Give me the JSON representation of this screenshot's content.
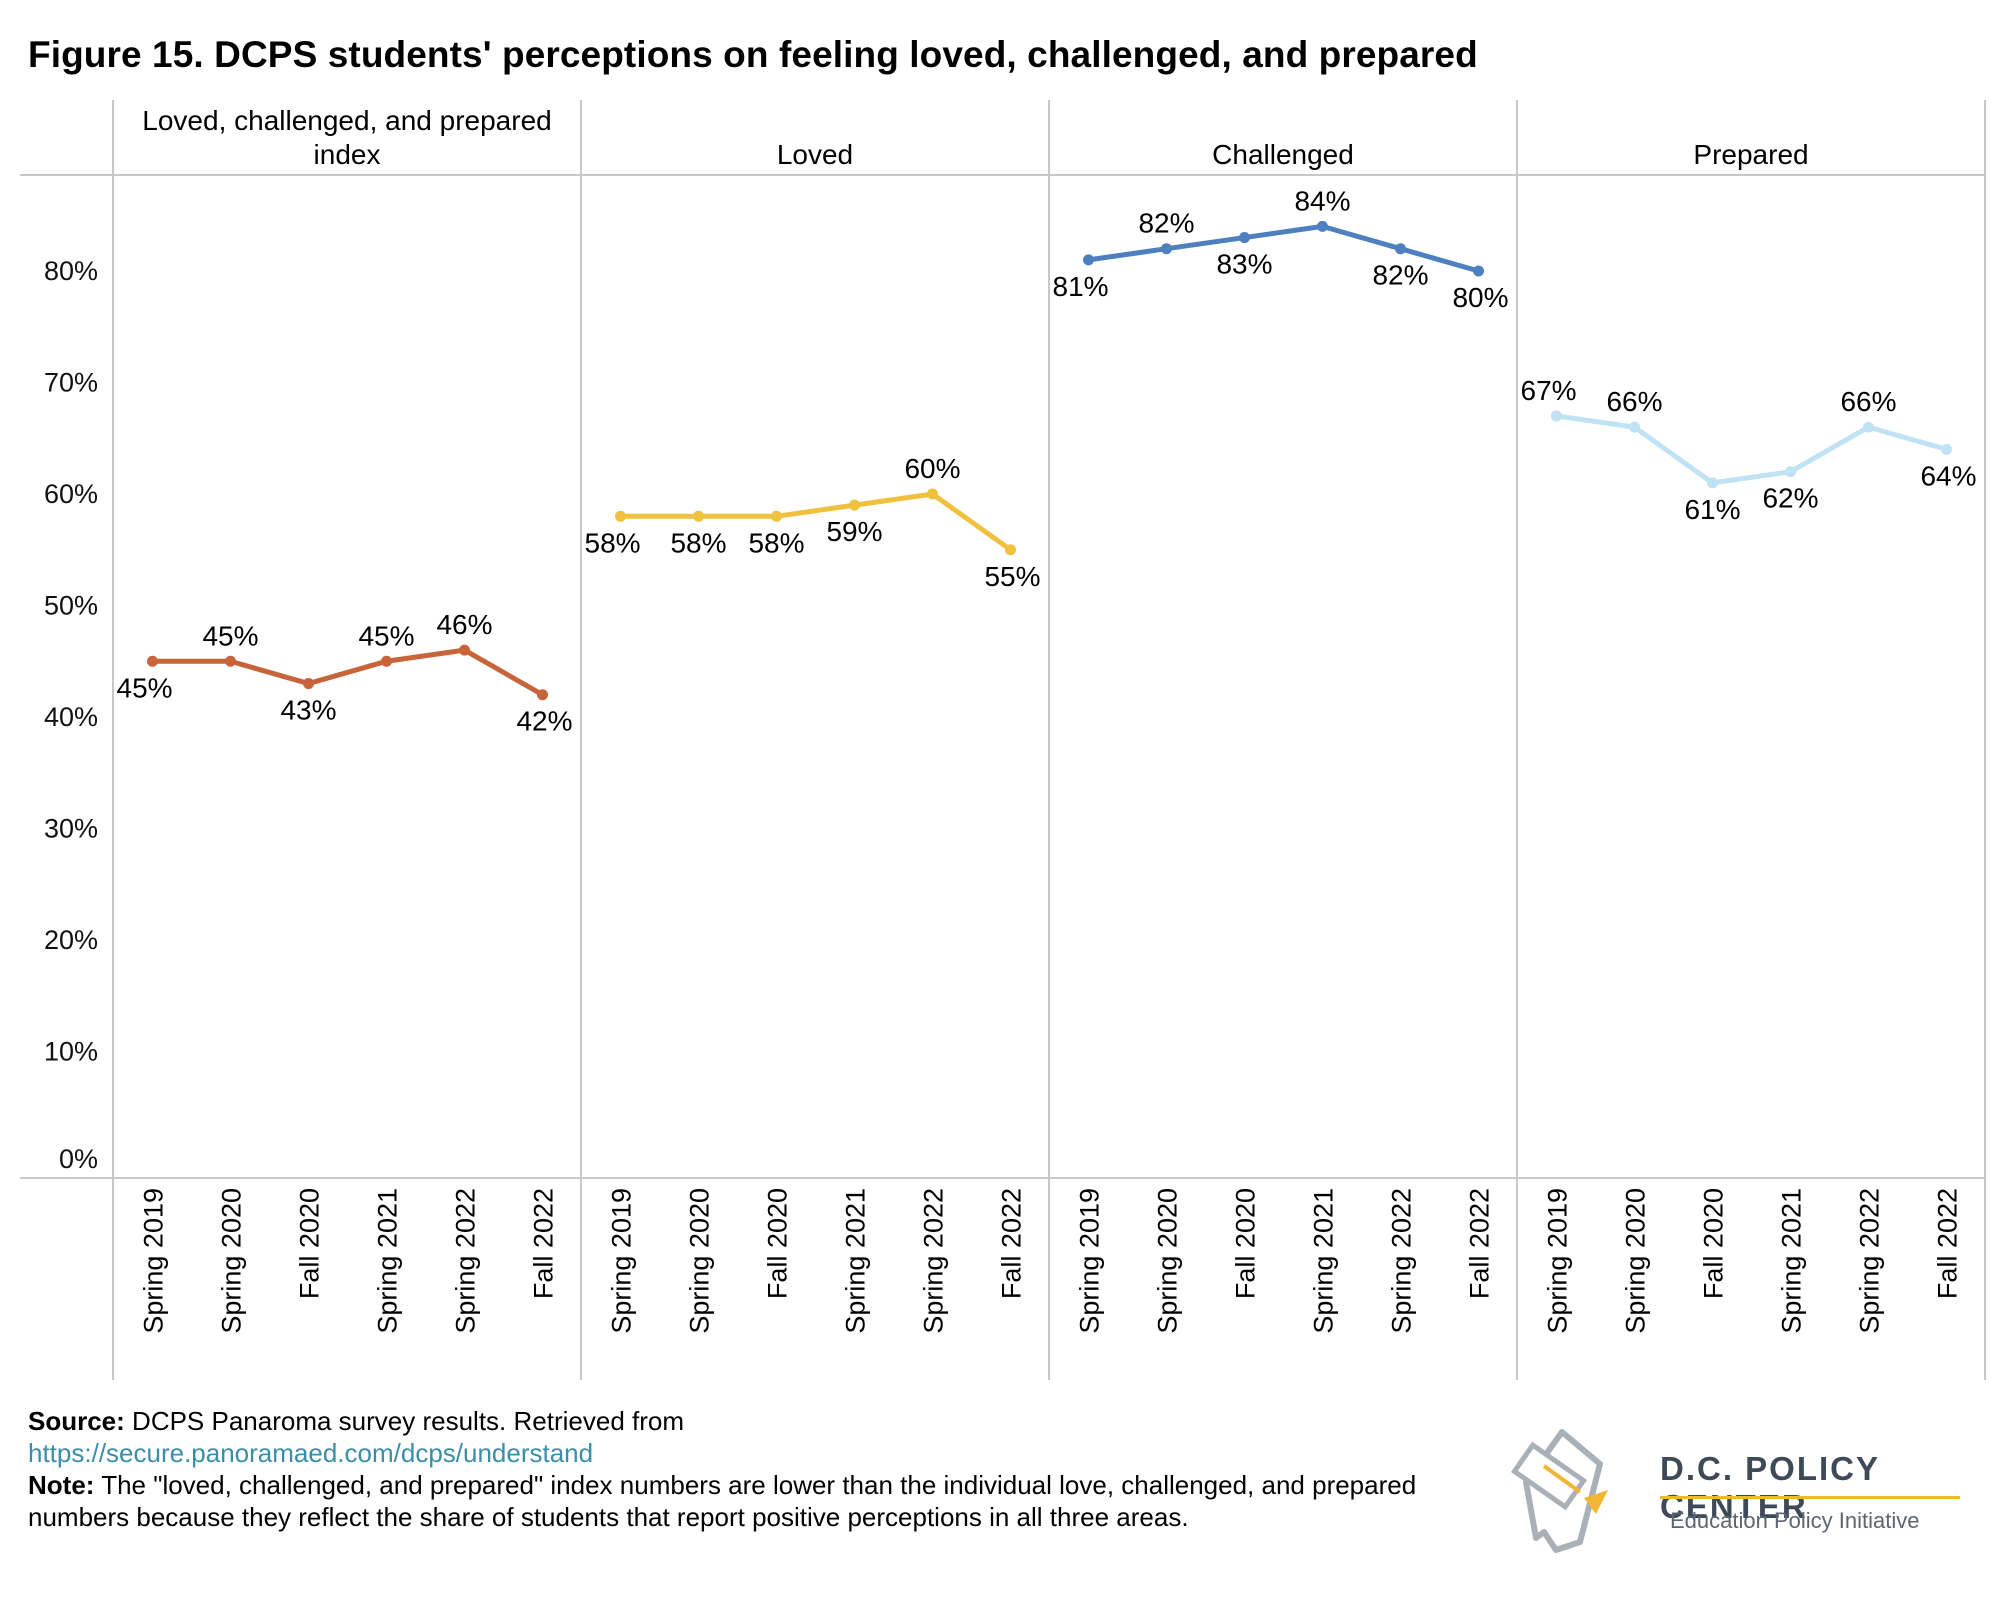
{
  "title": "Figure 15. DCPS students' perceptions on feeling loved, challenged, and prepared",
  "chart_data": {
    "type": "line",
    "categories": [
      "Spring 2019",
      "Spring 2020",
      "Fall 2020",
      "Spring 2021",
      "Spring 2022",
      "Fall 2022"
    ],
    "ylim": [
      0,
      88
    ],
    "yticks": [
      "0%",
      "10%",
      "20%",
      "30%",
      "40%",
      "50%",
      "60%",
      "70%",
      "80%"
    ],
    "grid": false,
    "panels": [
      {
        "name": "Loved, challenged, and prepared index",
        "title_lines": [
          "Loved, challenged, and prepared",
          "index"
        ],
        "color": "#c8643a",
        "values": [
          45,
          45,
          43,
          45,
          46,
          42
        ],
        "labels": [
          "45%",
          "45%",
          "43%",
          "45%",
          "46%",
          "42%"
        ]
      },
      {
        "name": "Loved",
        "title_lines": [
          "Loved"
        ],
        "color": "#efc13f",
        "values": [
          58,
          58,
          58,
          59,
          60,
          55
        ],
        "labels": [
          "58%",
          "58%",
          "58%",
          "59%",
          "60%",
          "55%"
        ]
      },
      {
        "name": "Challenged",
        "title_lines": [
          "Challenged"
        ],
        "color": "#4e7fbf",
        "values": [
          81,
          82,
          83,
          84,
          82,
          80
        ],
        "labels": [
          "81%",
          "82%",
          "83%",
          "84%",
          "82%",
          "80%"
        ]
      },
      {
        "name": "Prepared",
        "title_lines": [
          "Prepared"
        ],
        "color": "#bfe2f5",
        "values": [
          67,
          66,
          61,
          62,
          66,
          64
        ],
        "labels": [
          "67%",
          "66%",
          "61%",
          "62%",
          "66%",
          "64%"
        ]
      }
    ]
  },
  "notes": {
    "source_label": "Source:",
    "source_text": " DCPS Panaroma survey results. Retrieved from",
    "source_link": "https://secure.panoramaed.com/dcps/understand",
    "note_label": "Note:",
    "note_text": " The \"loved, challenged, and prepared\" index numbers are lower than the individual love, challenged, and prepared numbers because they reflect the share of students that report positive perceptions in all three areas."
  },
  "logo": {
    "name": "D.C. POLICY CENTER",
    "subtitle": "Education Policy Initiative"
  }
}
